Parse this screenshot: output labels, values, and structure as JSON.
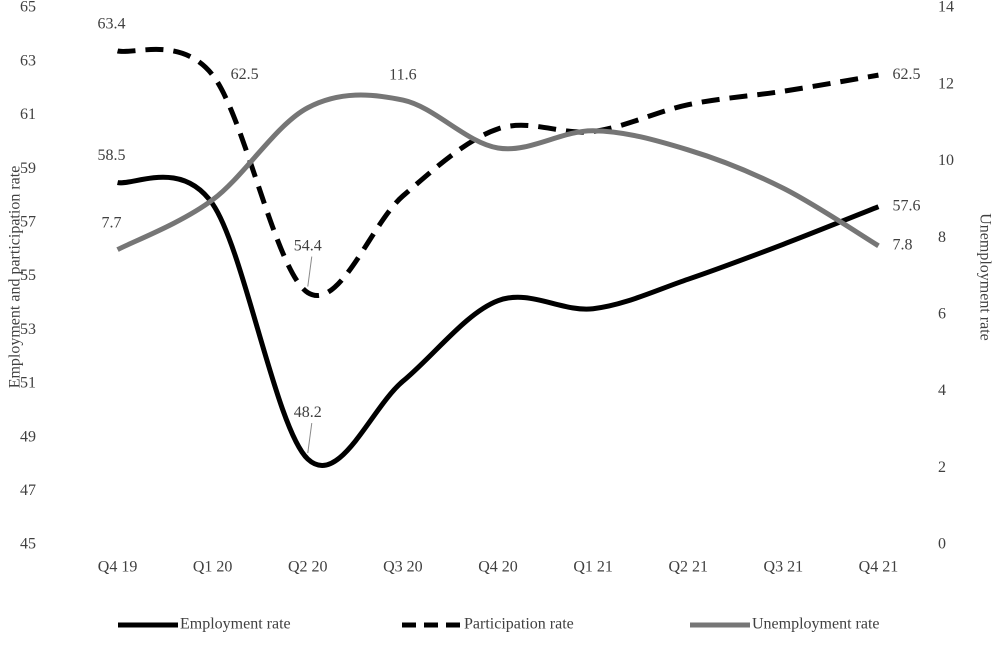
{
  "chart_data": {
    "type": "line",
    "y_label": "Employment and participation rate",
    "y2_label": "Unemployment rate",
    "categories": [
      "Q4 19",
      "Q1 20",
      "Q2 20",
      "Q3 20",
      "Q4 20",
      "Q1 21",
      "Q2 21",
      "Q3 21",
      "Q4 21"
    ],
    "ylim": [
      45,
      65
    ],
    "yticks": [
      45,
      47,
      49,
      51,
      53,
      55,
      57,
      59,
      61,
      63,
      65
    ],
    "y2lim": [
      0,
      14
    ],
    "y2ticks": [
      0,
      2,
      4,
      6,
      8,
      10,
      12,
      14
    ],
    "grid": false,
    "legend": "bottom",
    "smooth": true,
    "series": [
      {
        "name": "Employment rate",
        "color": "#000000",
        "dashed": false,
        "values": [
          58.5,
          57.7,
          48.2,
          51.1,
          54.1,
          53.8,
          54.9,
          56.2,
          57.6
        ],
        "value_labels": [
          "58.5",
          null,
          "48.2",
          null,
          null,
          null,
          null,
          null,
          "57.6"
        ]
      },
      {
        "name": "Participation rate",
        "color": "#000000",
        "dashed": true,
        "values": [
          63.4,
          62.5,
          54.4,
          58.0,
          60.5,
          60.4,
          61.4,
          61.9,
          62.5
        ],
        "value_labels": [
          "63.4",
          "62.5",
          "54.4",
          null,
          null,
          null,
          null,
          null,
          "62.5"
        ]
      },
      {
        "name": "Unemployment rate",
        "color": "#767676",
        "dashed": false,
        "axis": "y2",
        "values": [
          7.7,
          9.0,
          11.4,
          11.6,
          10.35,
          10.8,
          10.3,
          9.3,
          7.8
        ],
        "value_labels": [
          "7.7",
          null,
          null,
          "11.6",
          null,
          null,
          null,
          null,
          "7.8"
        ]
      }
    ]
  }
}
